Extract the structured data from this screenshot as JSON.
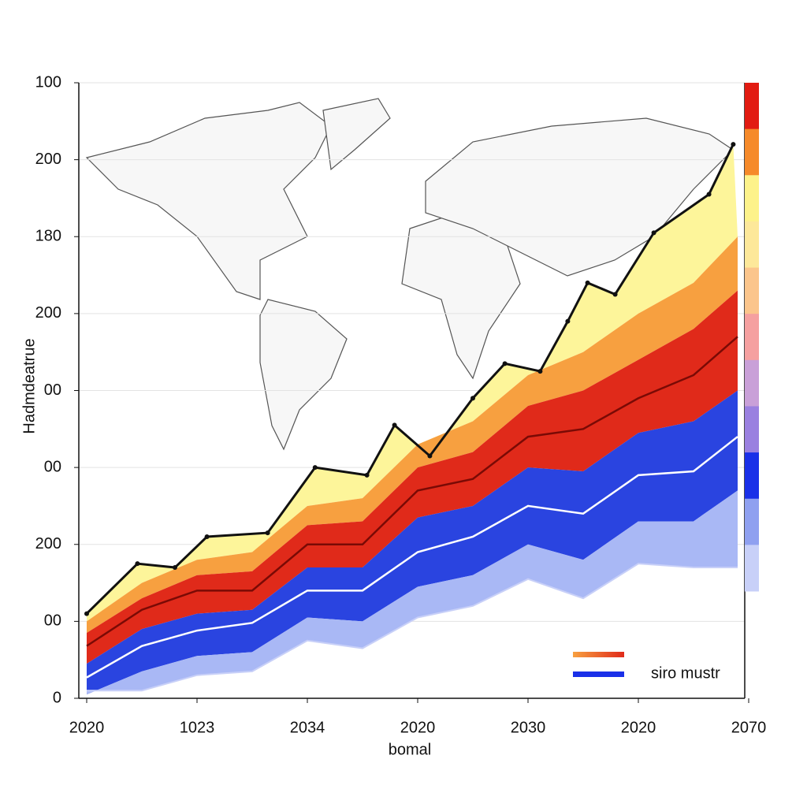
{
  "chart_data": {
    "type": "area",
    "y_label": "Hadmdeatrue",
    "x_label": "bomal",
    "xlim": [
      0,
      6
    ],
    "ylim": [
      0,
      8
    ],
    "xticks": [
      {
        "value": 0,
        "label": "2020"
      },
      {
        "value": 1,
        "label": "1023"
      },
      {
        "value": 2,
        "label": "2034"
      },
      {
        "value": 3,
        "label": "2020"
      },
      {
        "value": 4,
        "label": "2030"
      },
      {
        "value": 5,
        "label": "2020"
      },
      {
        "value": 6,
        "label": "2070"
      }
    ],
    "yticks": [
      {
        "value": 0,
        "label": "0"
      },
      {
        "value": 1,
        "label": "00"
      },
      {
        "value": 2,
        "label": "200"
      },
      {
        "value": 3,
        "label": "00"
      },
      {
        "value": 4,
        "label": "00"
      },
      {
        "value": 5,
        "label": "200"
      },
      {
        "value": 6,
        "label": "180"
      },
      {
        "value": 7,
        "label": "200"
      },
      {
        "value": 8,
        "label": "100"
      }
    ],
    "grid": true,
    "top_line": {
      "color": "#111111",
      "fill": "#fdf59a",
      "x": [
        0,
        0.46,
        0.8,
        1.09,
        1.64,
        2.07,
        2.54,
        2.79,
        3.11,
        3.5,
        3.79,
        4.11,
        4.36,
        4.54,
        4.79,
        5.14,
        5.64,
        5.86
      ],
      "values": [
        1.1,
        1.75,
        1.7,
        2.1,
        2.15,
        3.0,
        2.9,
        3.55,
        3.15,
        3.9,
        4.35,
        4.25,
        4.9,
        5.4,
        5.25,
        6.05,
        6.55,
        7.2
      ]
    },
    "x": [
      0,
      0.5,
      1,
      1.5,
      2,
      2.5,
      3,
      3.5,
      4,
      4.5,
      5,
      5.5,
      5.9
    ],
    "series": [
      {
        "fill": "#f7a040",
        "values": [
          1.0,
          1.5,
          1.8,
          1.9,
          2.5,
          2.6,
          3.3,
          3.6,
          4.2,
          4.5,
          5.0,
          5.4,
          6.0
        ]
      },
      {
        "fill": "#e02a1a",
        "values": [
          0.85,
          1.3,
          1.6,
          1.65,
          2.25,
          2.3,
          3.0,
          3.2,
          3.8,
          4.0,
          4.4,
          4.8,
          5.3
        ]
      },
      {
        "fill": "#2a44e0",
        "values": [
          0.45,
          0.9,
          1.1,
          1.15,
          1.7,
          1.7,
          2.35,
          2.5,
          3.0,
          2.95,
          3.45,
          3.6,
          4.0
        ]
      },
      {
        "fill": "#a9b8f5",
        "values": [
          0.05,
          0.35,
          0.55,
          0.6,
          1.05,
          1.0,
          1.45,
          1.6,
          2.0,
          1.8,
          2.3,
          2.3,
          2.7
        ]
      },
      {
        "values": [
          0.1,
          0.1,
          0.3,
          0.35,
          0.75,
          0.65,
          1.05,
          1.2,
          1.55,
          1.3,
          1.75,
          1.7,
          1.7
        ]
      }
    ],
    "lines": [
      {
        "color": "#7a0a05",
        "values": [
          0.68,
          1.15,
          1.4,
          1.4,
          2.0,
          2.0,
          2.7,
          2.85,
          3.4,
          3.5,
          3.9,
          4.2,
          4.7
        ]
      },
      {
        "color": "#ffffff",
        "values": [
          0.27,
          0.68,
          0.88,
          0.98,
          1.4,
          1.4,
          1.9,
          2.1,
          2.5,
          2.4,
          2.9,
          2.95,
          3.4
        ]
      }
    ],
    "legend": "siro mustr",
    "colorbar": [
      "#e21b12",
      "#f68a2a",
      "#fdf28a",
      "#fde89a",
      "#fbc58c",
      "#f5a0a0",
      "#c9a0d8",
      "#9a80e0",
      "#1a30e8",
      "#8fa0f0",
      "#c8d0f8"
    ]
  }
}
